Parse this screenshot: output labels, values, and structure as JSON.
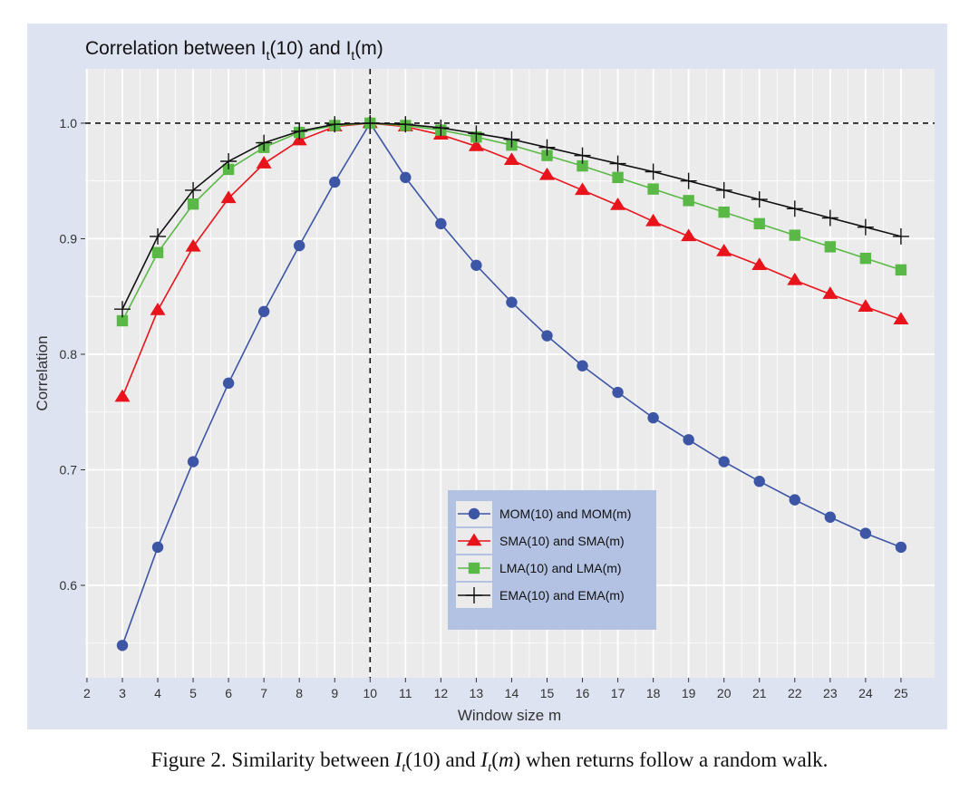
{
  "chart_data": {
    "type": "line",
    "title": {
      "prefix": "Correlation between I",
      "sub1": "t",
      "mid": "(10) and I",
      "sub2": "t",
      "suffix": "(m)"
    },
    "xlabel": "Window size m",
    "ylabel": "Correlation",
    "xlim": [
      1.95,
      25.95
    ],
    "ylim": [
      0.52,
      1.047
    ],
    "x_ticks": [
      2,
      3,
      4,
      5,
      6,
      7,
      8,
      9,
      10,
      11,
      12,
      13,
      14,
      15,
      16,
      17,
      18,
      19,
      20,
      21,
      22,
      23,
      24,
      25
    ],
    "y_ticks": [
      0.6,
      0.7,
      0.8,
      0.9,
      1.0
    ],
    "y_tick_labels": [
      "0.6",
      "0.7",
      "0.8",
      "0.9",
      "1.0"
    ],
    "reference_lines": {
      "horizontal_y": 1.0,
      "vertical_x": 10
    },
    "grid": true,
    "legend_position": "bottom-center",
    "x": [
      3,
      4,
      5,
      6,
      7,
      8,
      9,
      10,
      11,
      12,
      13,
      14,
      15,
      16,
      17,
      18,
      19,
      20,
      21,
      22,
      23,
      24,
      25
    ],
    "series": [
      {
        "name": "MOM(10) and MOM(m)",
        "marker": "circle",
        "color": "#3d55a5",
        "values": [
          0.548,
          0.633,
          0.707,
          0.775,
          0.837,
          0.894,
          0.949,
          1.0,
          0.953,
          0.913,
          0.877,
          0.845,
          0.816,
          0.79,
          0.767,
          0.745,
          0.726,
          0.707,
          0.69,
          0.674,
          0.659,
          0.645,
          0.633
        ]
      },
      {
        "name": "SMA(10) and SMA(m)",
        "marker": "triangle",
        "color": "#e8131b",
        "values": [
          0.763,
          0.838,
          0.893,
          0.935,
          0.965,
          0.985,
          0.997,
          1.0,
          0.997,
          0.99,
          0.98,
          0.968,
          0.955,
          0.942,
          0.929,
          0.915,
          0.902,
          0.889,
          0.877,
          0.864,
          0.852,
          0.841,
          0.83
        ]
      },
      {
        "name": "LMA(10) and LMA(m)",
        "marker": "square",
        "color": "#5ab946",
        "values": [
          0.829,
          0.888,
          0.93,
          0.96,
          0.979,
          0.992,
          0.998,
          1.0,
          0.998,
          0.994,
          0.988,
          0.981,
          0.972,
          0.963,
          0.953,
          0.943,
          0.933,
          0.923,
          0.913,
          0.903,
          0.893,
          0.883,
          0.873
        ]
      },
      {
        "name": "EMA(10) and EMA(m)",
        "marker": "plus",
        "color": "#111111",
        "values": [
          0.839,
          0.902,
          0.942,
          0.967,
          0.983,
          0.993,
          0.999,
          1.0,
          0.999,
          0.996,
          0.991,
          0.986,
          0.979,
          0.972,
          0.965,
          0.958,
          0.95,
          0.942,
          0.934,
          0.926,
          0.918,
          0.91,
          0.902
        ]
      }
    ],
    "colors": {
      "outer_background": "#dde3f1",
      "panel_background": "#ebebeb",
      "grid_major": "#ffffff",
      "legend_background": "#b3c2e3"
    }
  },
  "caption": {
    "prefix": "Figure 2.  Similarity between ",
    "I1": "I",
    "t1": "t",
    "arg1": "(10)",
    "and": " and ",
    "I2": "I",
    "t2": "t",
    "arg2": "(",
    "m": "m",
    "close": ")",
    "suffix": " when returns follow a random walk."
  }
}
